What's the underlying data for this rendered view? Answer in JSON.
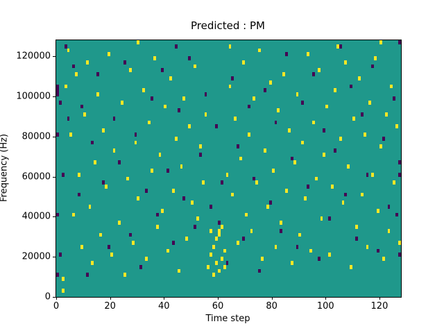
{
  "chart_data": {
    "type": "heatmap",
    "title": "Predicted : PM",
    "xlabel": "Time step",
    "ylabel": "Frequency (Hz)",
    "xlim": [
      0,
      128
    ],
    "ylim": [
      0,
      128000
    ],
    "x_ticks": [
      0,
      20,
      40,
      60,
      80,
      100,
      120
    ],
    "y_ticks": [
      0,
      20000,
      40000,
      60000,
      80000,
      100000,
      120000
    ],
    "grid": false,
    "legend": "none",
    "colors": {
      "background": "#1f988b",
      "positive": "#fde725",
      "negative": "#440154",
      "figure_background": "#ffffff",
      "axis": "#000000"
    },
    "grid_size": {
      "time_steps": 128,
      "freq_bins": 64,
      "hz_per_bin": 2000
    },
    "value_legend": "points are [time_step, freq_bin, value]; value 1 = yellow, -1 = dark purple, 0 (teal) elsewhere; positions estimated from pixels",
    "points": [
      [
        2,
        4,
        1
      ],
      [
        2,
        1,
        1
      ],
      [
        3,
        52,
        1
      ],
      [
        4,
        61,
        1
      ],
      [
        5,
        40,
        1
      ],
      [
        6,
        20,
        1
      ],
      [
        7,
        55,
        1
      ],
      [
        8,
        30,
        1
      ],
      [
        9,
        12,
        1
      ],
      [
        10,
        45,
        1
      ],
      [
        11,
        58,
        1
      ],
      [
        12,
        22,
        1
      ],
      [
        13,
        8,
        1
      ],
      [
        14,
        33,
        1
      ],
      [
        15,
        50,
        1
      ],
      [
        16,
        15,
        1
      ],
      [
        17,
        41,
        1
      ],
      [
        18,
        27,
        1
      ],
      [
        19,
        60,
        1
      ],
      [
        20,
        10,
        1
      ],
      [
        21,
        36,
        1
      ],
      [
        23,
        18,
        1
      ],
      [
        24,
        48,
        1
      ],
      [
        25,
        5,
        1
      ],
      [
        26,
        29,
        1
      ],
      [
        27,
        56,
        1
      ],
      [
        28,
        13,
        1
      ],
      [
        29,
        38,
        1
      ],
      [
        30,
        63,
        1
      ],
      [
        30,
        24,
        1
      ],
      [
        32,
        51,
        1
      ],
      [
        33,
        9,
        1
      ],
      [
        34,
        43,
        1
      ],
      [
        35,
        31,
        1
      ],
      [
        36,
        59,
        1
      ],
      [
        37,
        17,
        1
      ],
      [
        38,
        35,
        1
      ],
      [
        39,
        21,
        1
      ],
      [
        40,
        47,
        1
      ],
      [
        41,
        11,
        1
      ],
      [
        42,
        54,
        1
      ],
      [
        43,
        26,
        1
      ],
      [
        44,
        39,
        1
      ],
      [
        45,
        6,
        1
      ],
      [
        46,
        32,
        1
      ],
      [
        47,
        49,
        1
      ],
      [
        48,
        14,
        1
      ],
      [
        49,
        42,
        1
      ],
      [
        50,
        23,
        1
      ],
      [
        51,
        57,
        1
      ],
      [
        52,
        19,
        1
      ],
      [
        53,
        37,
        1
      ],
      [
        54,
        28,
        1
      ],
      [
        55,
        45,
        1
      ],
      [
        56,
        7,
        1
      ],
      [
        57,
        10,
        1
      ],
      [
        57,
        16,
        1
      ],
      [
        58,
        5,
        1
      ],
      [
        58,
        12,
        1
      ],
      [
        59,
        8,
        1
      ],
      [
        59,
        14,
        1
      ],
      [
        60,
        6,
        1
      ],
      [
        60,
        15,
        1
      ],
      [
        60,
        16,
        1
      ],
      [
        61,
        9,
        1
      ],
      [
        61,
        17,
        1
      ],
      [
        62,
        11,
        1
      ],
      [
        62,
        7,
        1
      ],
      [
        63,
        30,
        1
      ],
      [
        64,
        62,
        1
      ],
      [
        64,
        52,
        1
      ],
      [
        65,
        25,
        1
      ],
      [
        66,
        44,
        1
      ],
      [
        67,
        13,
        1
      ],
      [
        68,
        34,
        1
      ],
      [
        69,
        58,
        1
      ],
      [
        70,
        20,
        1
      ],
      [
        71,
        40,
        1
      ],
      [
        72,
        16,
        1
      ],
      [
        73,
        49,
        1
      ],
      [
        74,
        28,
        1
      ],
      [
        75,
        61,
        1
      ],
      [
        76,
        9,
        1
      ],
      [
        77,
        36,
        1
      ],
      [
        78,
        22,
        1
      ],
      [
        79,
        53,
        1
      ],
      [
        80,
        31,
        1
      ],
      [
        81,
        12,
        1
      ],
      [
        82,
        46,
        1
      ],
      [
        83,
        18,
        1
      ],
      [
        84,
        55,
        1
      ],
      [
        85,
        26,
        1
      ],
      [
        86,
        41,
        1
      ],
      [
        87,
        8,
        1
      ],
      [
        88,
        33,
        1
      ],
      [
        89,
        50,
        1
      ],
      [
        90,
        15,
        1
      ],
      [
        91,
        38,
        1
      ],
      [
        92,
        24,
        1
      ],
      [
        93,
        60,
        1
      ],
      [
        94,
        11,
        1
      ],
      [
        95,
        43,
        1
      ],
      [
        96,
        29,
        1
      ],
      [
        97,
        56,
        1
      ],
      [
        98,
        19,
        1
      ],
      [
        99,
        35,
        1
      ],
      [
        100,
        47,
        1
      ],
      [
        101,
        10,
        1
      ],
      [
        102,
        27,
        1
      ],
      [
        103,
        51,
        1
      ],
      [
        104,
        62,
        1
      ],
      [
        105,
        39,
        1
      ],
      [
        106,
        23,
        1
      ],
      [
        107,
        58,
        1
      ],
      [
        108,
        32,
        1
      ],
      [
        109,
        7,
        1
      ],
      [
        110,
        44,
        1
      ],
      [
        111,
        17,
        1
      ],
      [
        112,
        54,
        1
      ],
      [
        113,
        25,
        1
      ],
      [
        114,
        40,
        1
      ],
      [
        115,
        12,
        1
      ],
      [
        116,
        48,
        1
      ],
      [
        117,
        30,
        1
      ],
      [
        118,
        59,
        1
      ],
      [
        119,
        21,
        1
      ],
      [
        120,
        63,
        1
      ],
      [
        120,
        37,
        1
      ],
      [
        121,
        9,
        1
      ],
      [
        122,
        45,
        1
      ],
      [
        123,
        16,
        1
      ],
      [
        124,
        52,
        1
      ],
      [
        125,
        28,
        1
      ],
      [
        126,
        42,
        1
      ],
      [
        127,
        13,
        1
      ],
      [
        0,
        50,
        -1
      ],
      [
        0,
        51,
        -1
      ],
      [
        0,
        52,
        -1
      ],
      [
        0,
        20,
        -1
      ],
      [
        0,
        5,
        -1
      ],
      [
        0,
        40,
        -1
      ],
      [
        1,
        48,
        -1
      ],
      [
        1,
        10,
        -1
      ],
      [
        2,
        30,
        -1
      ],
      [
        3,
        62,
        -1
      ],
      [
        4,
        44,
        -1
      ],
      [
        6,
        57,
        -1
      ],
      [
        8,
        25,
        -1
      ],
      [
        9,
        47,
        -1
      ],
      [
        11,
        5,
        -1
      ],
      [
        13,
        38,
        -1
      ],
      [
        15,
        55,
        -1
      ],
      [
        17,
        28,
        -1
      ],
      [
        19,
        12,
        -1
      ],
      [
        21,
        44,
        -1
      ],
      [
        23,
        33,
        -1
      ],
      [
        25,
        58,
        -1
      ],
      [
        27,
        15,
        -1
      ],
      [
        29,
        40,
        -1
      ],
      [
        31,
        7,
        -1
      ],
      [
        33,
        26,
        -1
      ],
      [
        35,
        49,
        -1
      ],
      [
        37,
        20,
        -1
      ],
      [
        39,
        56,
        -1
      ],
      [
        41,
        31,
        -1
      ],
      [
        43,
        13,
        -1
      ],
      [
        44,
        62,
        -1
      ],
      [
        45,
        46,
        -1
      ],
      [
        47,
        24,
        -1
      ],
      [
        49,
        59,
        -1
      ],
      [
        51,
        17,
        -1
      ],
      [
        53,
        35,
        -1
      ],
      [
        55,
        50,
        -1
      ],
      [
        57,
        22,
        -1
      ],
      [
        59,
        42,
        -1
      ],
      [
        60,
        18,
        -1
      ],
      [
        61,
        28,
        -1
      ],
      [
        63,
        8,
        -1
      ],
      [
        65,
        54,
        -1
      ],
      [
        67,
        37,
        -1
      ],
      [
        69,
        14,
        -1
      ],
      [
        71,
        47,
        -1
      ],
      [
        73,
        29,
        -1
      ],
      [
        75,
        6,
        -1
      ],
      [
        77,
        51,
        -1
      ],
      [
        79,
        23,
        -1
      ],
      [
        81,
        43,
        -1
      ],
      [
        83,
        16,
        -1
      ],
      [
        85,
        60,
        -1
      ],
      [
        87,
        34,
        -1
      ],
      [
        89,
        12,
        -1
      ],
      [
        91,
        48,
        -1
      ],
      [
        93,
        27,
        -1
      ],
      [
        95,
        55,
        -1
      ],
      [
        97,
        9,
        -1
      ],
      [
        99,
        41,
        -1
      ],
      [
        101,
        19,
        -1
      ],
      [
        103,
        36,
        -1
      ],
      [
        105,
        62,
        -1
      ],
      [
        107,
        25,
        -1
      ],
      [
        109,
        52,
        -1
      ],
      [
        111,
        14,
        -1
      ],
      [
        113,
        45,
        -1
      ],
      [
        115,
        30,
        -1
      ],
      [
        117,
        57,
        -1
      ],
      [
        119,
        11,
        -1
      ],
      [
        121,
        39,
        -1
      ],
      [
        123,
        22,
        -1
      ],
      [
        125,
        49,
        -1
      ],
      [
        127,
        33,
        -1
      ],
      [
        127,
        63,
        -1
      ],
      [
        127,
        10,
        -1
      ],
      [
        127,
        30,
        -1
      ],
      [
        126,
        20,
        -1
      ]
    ]
  }
}
